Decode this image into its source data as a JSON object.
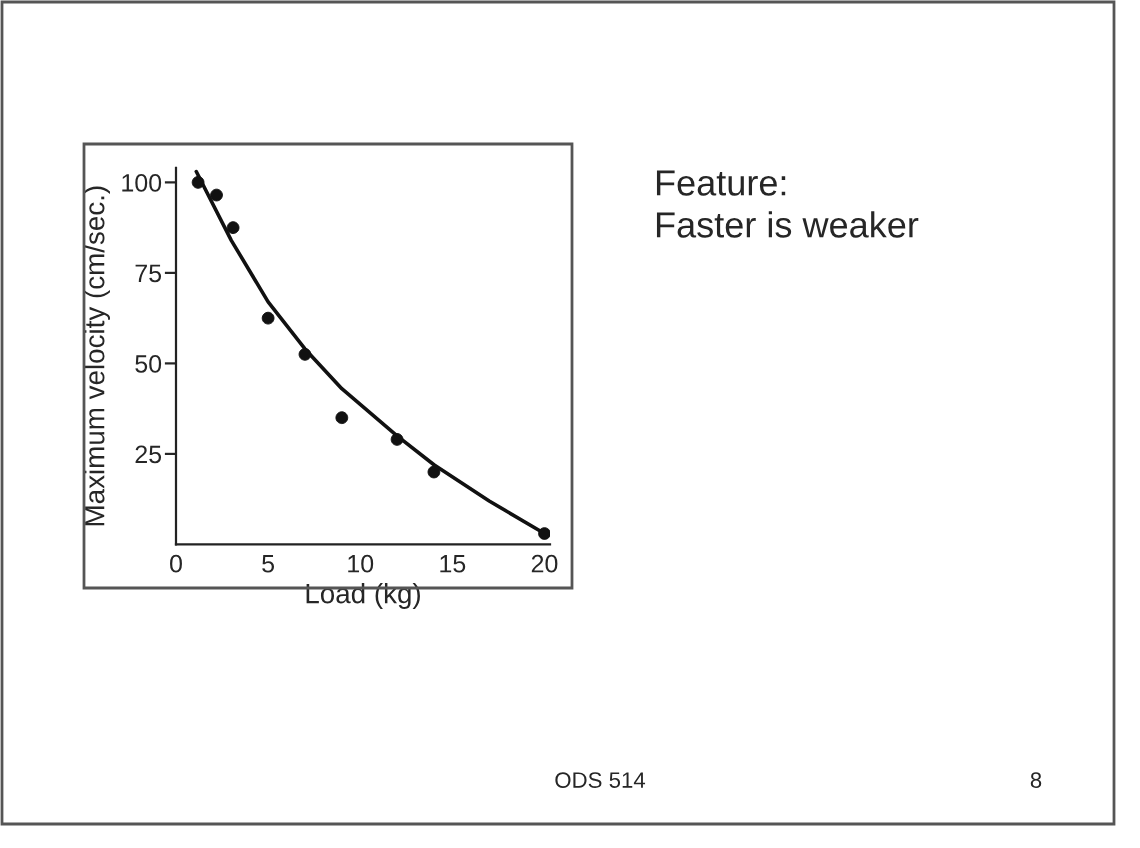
{
  "chart_data": {
    "type": "scatter",
    "xlabel": "Load (kg)",
    "ylabel": "Maximum velocity (cm/sec.)",
    "xlim": [
      0,
      20.3
    ],
    "ylim": [
      0,
      104
    ],
    "xticks": [
      0,
      5,
      10,
      15,
      20
    ],
    "yticks": [
      25,
      50,
      75,
      100
    ],
    "series": [
      {
        "marker": "circle",
        "color": "#111111",
        "x": [
          1.2,
          2.2,
          3.1,
          5,
          7,
          9,
          12,
          14,
          20
        ],
        "values": [
          100,
          96.5,
          87.5,
          62.5,
          52.5,
          35,
          29,
          20,
          3
        ]
      },
      {
        "type": "line",
        "color": "#111111",
        "x": [
          1.1,
          3,
          5,
          7,
          9,
          12,
          14,
          17,
          20
        ],
        "values": [
          103,
          84,
          67,
          54,
          43,
          30,
          22,
          12,
          3
        ]
      }
    ],
    "annotations": [
      "Feature:",
      "Faster is weaker",
      "ODS 514",
      "8"
    ]
  }
}
